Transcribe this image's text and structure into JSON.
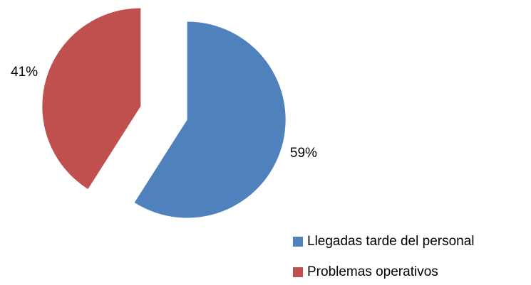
{
  "chart_data": {
    "type": "pie",
    "categories": [
      "Llegadas tarde del personal",
      "Problemas operativos"
    ],
    "values": [
      59,
      41
    ],
    "value_labels": [
      "59%",
      "41%"
    ],
    "colors": [
      "#4f81bd",
      "#c0504d"
    ],
    "exploded": true,
    "legend": "bottom-right"
  }
}
